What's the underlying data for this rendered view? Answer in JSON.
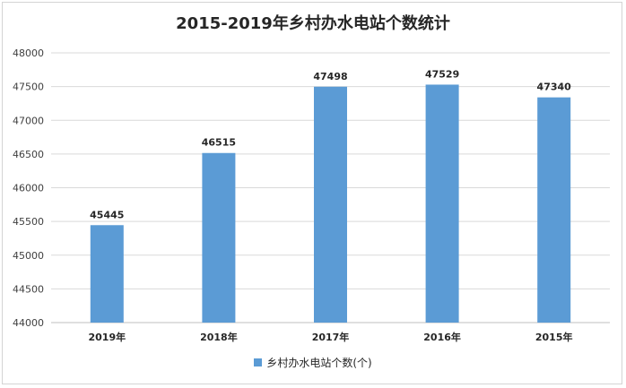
{
  "chart_data": {
    "type": "bar",
    "title": "2015-2019年乡村办水电站个数统计",
    "categories": [
      "2019年",
      "2018年",
      "2017年",
      "2016年",
      "2015年"
    ],
    "series": [
      {
        "name": "乡村办水电站个数(个)",
        "values": [
          45445,
          46515,
          47498,
          47529,
          47340
        ],
        "color": "#5b9bd5"
      }
    ],
    "ylim": [
      44000,
      48000
    ],
    "yticks": [
      44000,
      44500,
      45000,
      45500,
      46000,
      46500,
      47000,
      47500,
      48000
    ],
    "grid": true,
    "legend_position": "bottom"
  }
}
